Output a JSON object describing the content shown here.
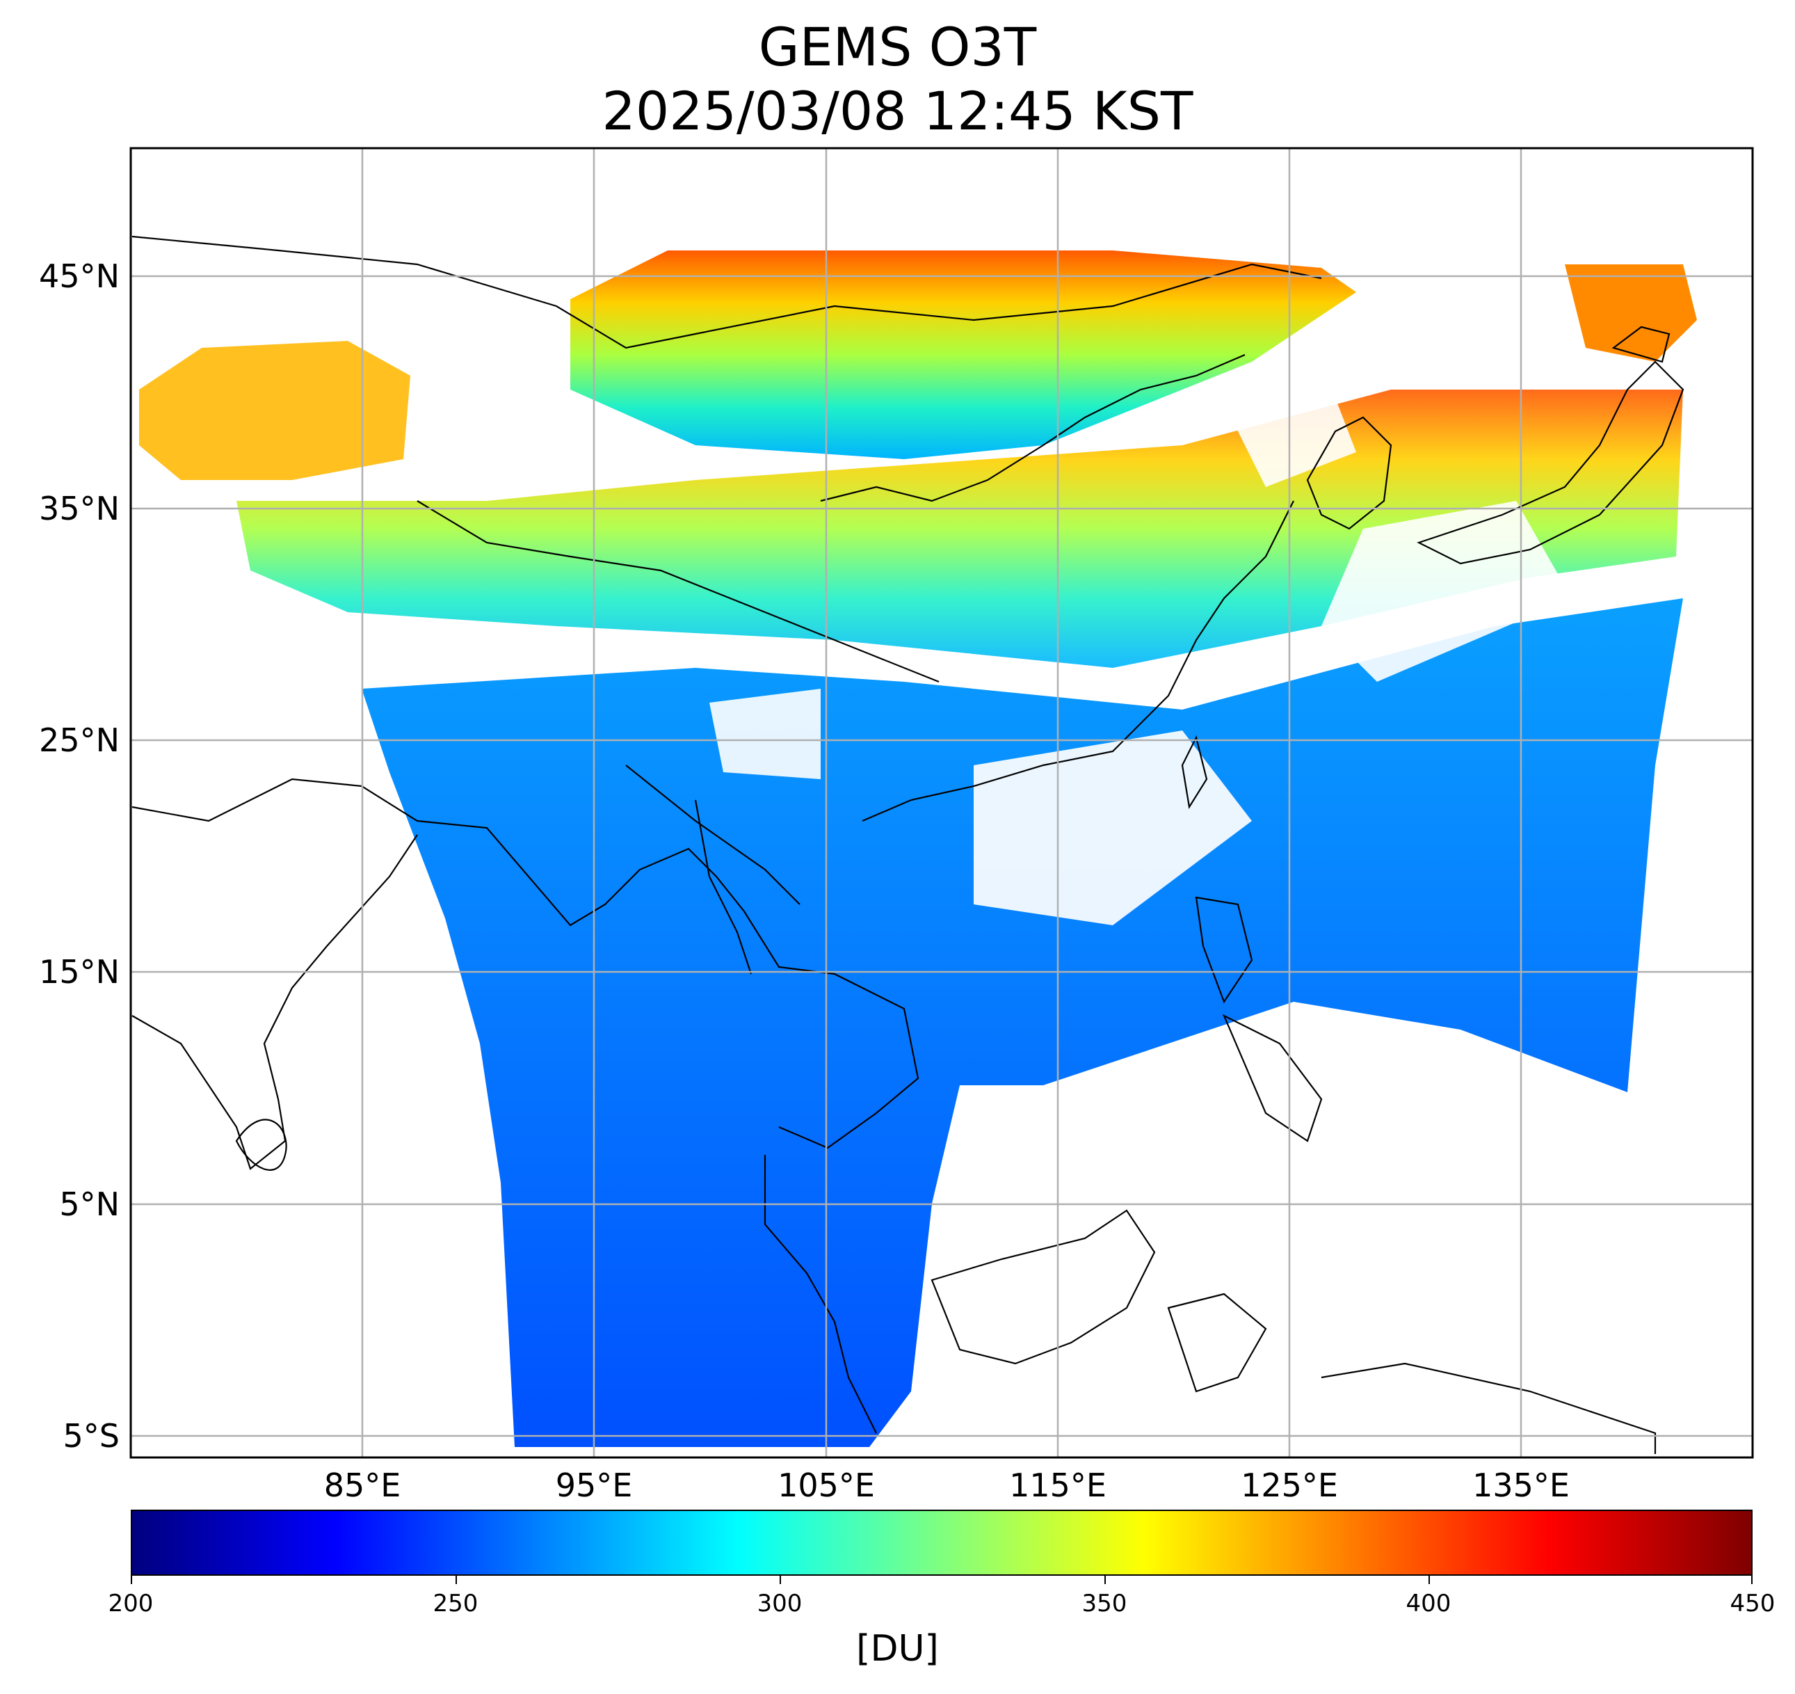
{
  "title": {
    "line1": "GEMS O3T",
    "line2": "2025/03/08 12:45 KST"
  },
  "map": {
    "lat_labels": [
      "45°N",
      "35°N",
      "25°N",
      "15°N",
      "5°N",
      "5°S"
    ],
    "lon_labels": [
      "85°E",
      "95°E",
      "105°E",
      "115°E",
      "125°E",
      "135°E"
    ],
    "lat_range": [
      -6,
      51.5
    ],
    "lon_range": [
      75,
      145
    ],
    "gridlines": true,
    "gridline_color": "#b0b0b0",
    "coastline_color": "#000000"
  },
  "colorbar": {
    "tick_labels": [
      "200",
      "250",
      "300",
      "350",
      "400",
      "450"
    ],
    "range": [
      200,
      450
    ],
    "unit_label": "[DU]",
    "colormap": "jet",
    "colors": [
      "#00007f",
      "#0000ff",
      "#007fff",
      "#00ffff",
      "#7fff7f",
      "#ffff00",
      "#ff7f00",
      "#ff0000",
      "#7f0000"
    ]
  }
}
